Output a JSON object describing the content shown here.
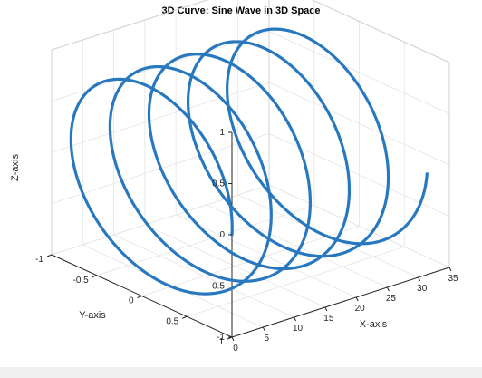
{
  "chart_data": {
    "type": "line",
    "subtype": "3d-helix",
    "title": "3D Curve: Sine Wave in 3D Space",
    "xlabel": "X-axis",
    "ylabel": "Y-axis",
    "zlabel": "Z-axis",
    "xlim": [
      0,
      35
    ],
    "ylim": [
      -1,
      1
    ],
    "zlim": [
      -1,
      1
    ],
    "xticks": [
      "0",
      "5",
      "10",
      "15",
      "20",
      "25",
      "30",
      "35"
    ],
    "yticks": [
      "-1",
      "-0.5",
      "0",
      "0.5",
      "1"
    ],
    "zticks": [
      "-1",
      "-0.5",
      "0",
      "0.5",
      "1"
    ],
    "grid": true,
    "series": [
      {
        "name": "",
        "equation": "x = t, y = cos(t), z = sin(t)",
        "t_range": [
          0,
          31.4
        ],
        "turns": 5,
        "color": "#2878c0",
        "marker": "dot"
      }
    ]
  }
}
